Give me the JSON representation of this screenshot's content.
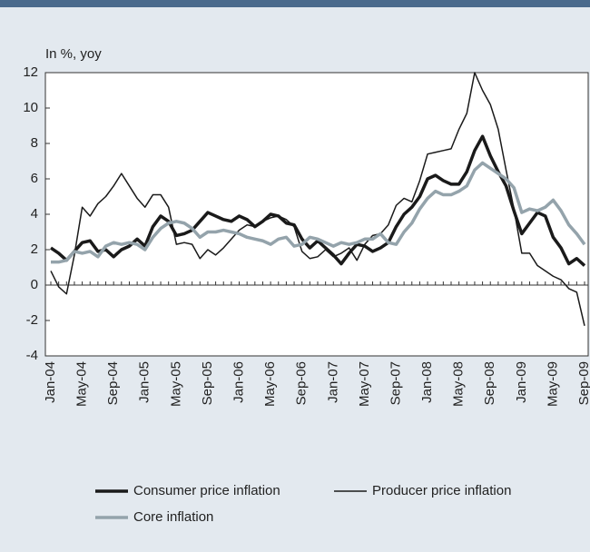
{
  "chart_data": {
    "type": "line",
    "y_label": "In %, yoy",
    "categories": [
      "Jan-04",
      null,
      null,
      null,
      "May-04",
      null,
      null,
      null,
      "Sep-04",
      null,
      null,
      null,
      "Jan-05",
      null,
      null,
      null,
      "May-05",
      null,
      null,
      null,
      "Sep-05",
      null,
      null,
      null,
      "Jan-06",
      null,
      null,
      null,
      "May-06",
      null,
      null,
      null,
      "Sep-06",
      null,
      null,
      null,
      "Jan-07",
      null,
      null,
      null,
      "May-07",
      null,
      null,
      null,
      "Sep-07",
      null,
      null,
      null,
      "Jan-08",
      null,
      null,
      null,
      "May-08",
      null,
      null,
      null,
      "Sep-08",
      null,
      null,
      null,
      "Jan-09",
      null,
      null,
      null,
      "May-09",
      null,
      null,
      null,
      "Sep-09"
    ],
    "series": [
      {
        "name": "Consumer price inflation",
        "color": "#1a1a1a",
        "width": 3.5,
        "values": [
          2.1,
          1.8,
          1.4,
          1.9,
          2.4,
          2.5,
          1.9,
          2.0,
          1.6,
          2.0,
          2.2,
          2.6,
          2.2,
          3.3,
          3.9,
          3.6,
          2.8,
          2.9,
          3.1,
          3.6,
          4.1,
          3.9,
          3.7,
          3.6,
          3.9,
          3.7,
          3.3,
          3.6,
          4.0,
          3.9,
          3.5,
          3.4,
          2.6,
          2.1,
          2.5,
          2.1,
          1.7,
          1.2,
          1.8,
          2.3,
          2.2,
          1.9,
          2.1,
          2.4,
          3.3,
          4.0,
          4.4,
          5.0,
          6.0,
          6.2,
          5.9,
          5.7,
          5.7,
          6.4,
          7.6,
          8.4,
          7.3,
          6.4,
          5.6,
          4.2,
          2.9,
          3.5,
          4.1,
          3.9,
          2.7,
          2.1,
          1.2,
          1.5,
          1.1
        ]
      },
      {
        "name": "Producer price inflation",
        "color": "#1a1a1a",
        "width": 1.5,
        "values": [
          0.8,
          -0.1,
          -0.5,
          1.7,
          4.4,
          3.9,
          4.6,
          5.0,
          5.6,
          6.3,
          5.6,
          4.9,
          4.4,
          5.1,
          5.1,
          4.4,
          2.3,
          2.4,
          2.3,
          1.5,
          2.0,
          1.7,
          2.1,
          2.6,
          3.1,
          3.4,
          3.3,
          3.6,
          3.8,
          3.9,
          3.7,
          3.3,
          1.9,
          1.5,
          1.6,
          2.0,
          1.6,
          1.8,
          2.1,
          1.4,
          2.3,
          2.8,
          2.9,
          3.4,
          4.5,
          4.9,
          4.7,
          5.9,
          7.4,
          7.5,
          7.6,
          7.7,
          8.8,
          9.7,
          12.0,
          11.0,
          10.2,
          8.8,
          6.5,
          4.3,
          1.8,
          1.8,
          1.1,
          0.8,
          0.5,
          0.3,
          -0.2,
          -0.4,
          -2.3
        ]
      },
      {
        "name": "Core inflation",
        "color": "#94a3ab",
        "width": 3.5,
        "values": [
          1.3,
          1.3,
          1.4,
          1.9,
          1.8,
          1.9,
          1.6,
          2.2,
          2.4,
          2.3,
          2.4,
          2.3,
          2.0,
          2.7,
          3.2,
          3.5,
          3.6,
          3.5,
          3.2,
          2.7,
          3.0,
          3.0,
          3.1,
          3.0,
          2.9,
          2.7,
          2.6,
          2.5,
          2.3,
          2.6,
          2.7,
          2.2,
          2.3,
          2.7,
          2.6,
          2.4,
          2.2,
          2.4,
          2.3,
          2.4,
          2.6,
          2.6,
          2.9,
          2.4,
          2.3,
          3.0,
          3.5,
          4.3,
          4.9,
          5.3,
          5.1,
          5.1,
          5.3,
          5.6,
          6.5,
          6.9,
          6.6,
          6.3,
          6.0,
          5.5,
          4.1,
          4.3,
          4.2,
          4.4,
          4.8,
          4.2,
          3.4,
          2.9,
          2.3
        ]
      }
    ],
    "ylim": [
      -4,
      12
    ],
    "yticks": [
      -4,
      -2,
      0,
      2,
      4,
      6,
      8,
      10,
      12
    ],
    "grid": false
  }
}
